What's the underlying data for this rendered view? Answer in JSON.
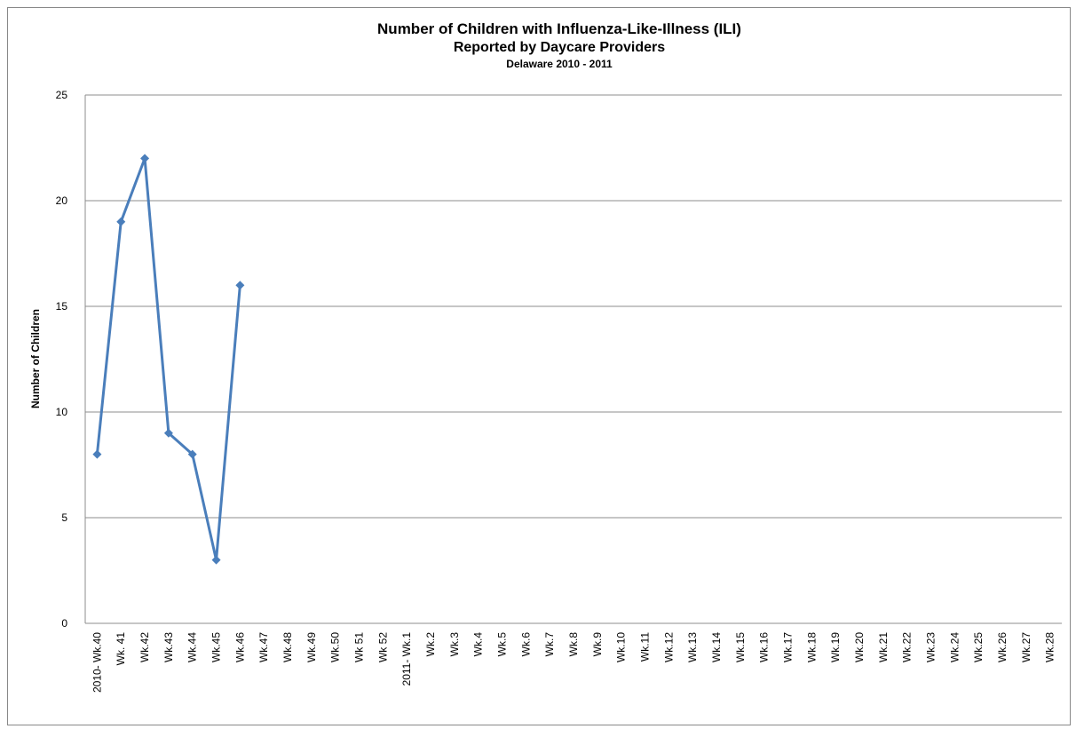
{
  "chart_data": {
    "type": "line",
    "title": "Number of Children with Influenza-Like-Illness (ILI)",
    "subtitle": "Reported by Daycare Providers",
    "subtitle_2": "Delaware 2010  - 2011",
    "y_label": "Number of Children",
    "categories": [
      "2010- Wk.40",
      "Wk. 41",
      "Wk.42",
      "Wk.43",
      "Wk.44",
      "Wk.45",
      "Wk.46",
      "Wk.47",
      "Wk.48",
      "Wk.49",
      "Wk.50",
      "Wk 51",
      "Wk 52",
      "2011- Wk.1",
      "Wk.2",
      "Wk.3",
      "Wk.4",
      "Wk.5",
      "Wk.6",
      "Wk.7",
      "Wk.8",
      "Wk.9",
      "Wk.10",
      "Wk.11",
      "Wk.12",
      "Wk.13",
      "Wk.14",
      "Wk.15",
      "Wk.16",
      "Wk.17",
      "Wk.18",
      "Wk.19",
      "Wk.20",
      "Wk.21",
      "Wk.22",
      "Wk.23",
      "Wk.24",
      "Wk.25",
      "Wk.26",
      "Wk.27",
      "Wk.28"
    ],
    "values": [
      8,
      19,
      22,
      9,
      8,
      3,
      16,
      null,
      null,
      null,
      null,
      null,
      null,
      null,
      null,
      null,
      null,
      null,
      null,
      null,
      null,
      null,
      null,
      null,
      null,
      null,
      null,
      null,
      null,
      null,
      null,
      null,
      null,
      null,
      null,
      null,
      null,
      null,
      null,
      null,
      null
    ],
    "color": "#4a7ebb",
    "ylim": [
      0,
      25
    ],
    "yticks": [
      0,
      5,
      10,
      15,
      20,
      25
    ],
    "grid": true
  }
}
